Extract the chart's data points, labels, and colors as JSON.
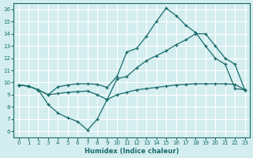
{
  "xlabel": "Humidex (Indice chaleur)",
  "bg_color": "#d4eef0",
  "grid_color": "#c8dfe2",
  "line_color": "#1a6b6b",
  "xlim": [
    -0.5,
    23.5
  ],
  "ylim": [
    5.5,
    16.5
  ],
  "xticks": [
    0,
    1,
    2,
    3,
    4,
    5,
    6,
    7,
    8,
    9,
    10,
    11,
    12,
    13,
    14,
    15,
    16,
    17,
    18,
    19,
    20,
    21,
    22,
    23
  ],
  "yticks": [
    6,
    7,
    8,
    9,
    10,
    11,
    12,
    13,
    14,
    15,
    16
  ],
  "line1_x": [
    0,
    1,
    2,
    3,
    4,
    5,
    6,
    7,
    8,
    9,
    10,
    11,
    12,
    13,
    14,
    15,
    16,
    17,
    18,
    19,
    20,
    21,
    22,
    23
  ],
  "line1_y": [
    9.8,
    9.7,
    9.4,
    9.0,
    9.65,
    9.8,
    9.9,
    9.9,
    9.85,
    9.6,
    10.5,
    12.5,
    12.8,
    13.8,
    15.0,
    16.1,
    15.5,
    14.7,
    14.1,
    13.0,
    12.0,
    11.5,
    9.5,
    9.4
  ],
  "line2_x": [
    0,
    1,
    2,
    3,
    4,
    5,
    6,
    7,
    8,
    9,
    10,
    11,
    12,
    13,
    14,
    15,
    16,
    17,
    18,
    19,
    20,
    21,
    22,
    23
  ],
  "line2_y": [
    9.8,
    9.7,
    9.4,
    8.2,
    7.5,
    7.1,
    6.8,
    6.1,
    7.0,
    8.6,
    10.3,
    10.5,
    11.2,
    11.8,
    12.2,
    12.6,
    13.1,
    13.5,
    14.0,
    14.0,
    13.0,
    12.0,
    11.5,
    9.4
  ],
  "line3_x": [
    0,
    1,
    2,
    3,
    4,
    5,
    6,
    7,
    8,
    9,
    10,
    11,
    12,
    13,
    14,
    15,
    16,
    17,
    18,
    19,
    20,
    21,
    22,
    23
  ],
  "line3_y": [
    9.8,
    9.7,
    9.4,
    9.0,
    9.1,
    9.2,
    9.25,
    9.3,
    9.0,
    8.6,
    9.0,
    9.2,
    9.4,
    9.5,
    9.6,
    9.7,
    9.8,
    9.85,
    9.9,
    9.9,
    9.9,
    9.9,
    9.85,
    9.4
  ]
}
